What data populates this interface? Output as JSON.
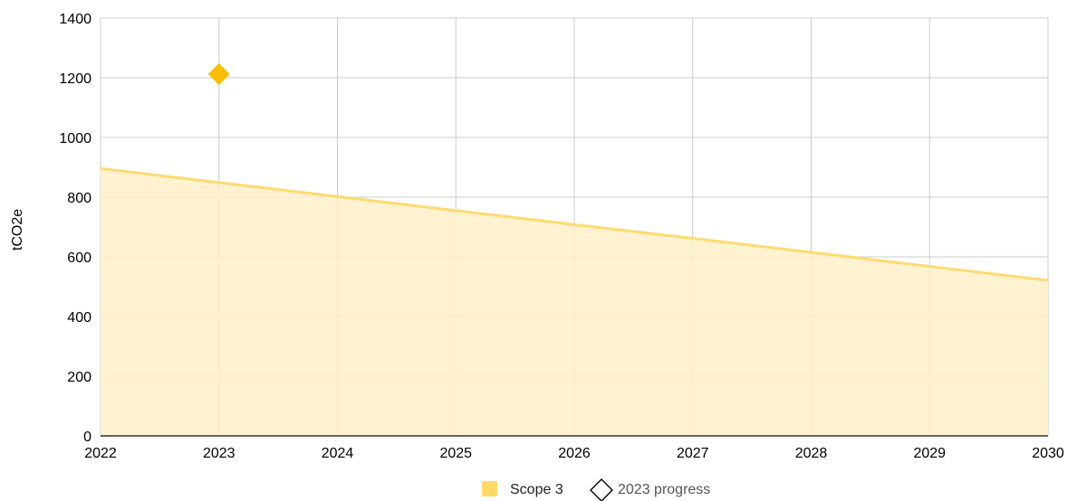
{
  "chart_data": {
    "type": "area",
    "x": [
      2022,
      2023,
      2024,
      2025,
      2026,
      2027,
      2028,
      2029,
      2030
    ],
    "xlim": [
      2022,
      2030
    ],
    "ylim": [
      0,
      1400
    ],
    "yticks": [
      0,
      200,
      400,
      600,
      800,
      1000,
      1200,
      1400
    ],
    "ylabel": "tCO2e",
    "xlabel": "",
    "grid": true,
    "legend_position": "bottom",
    "series": [
      {
        "name": "Scope 3",
        "type": "area",
        "values": [
          896,
          849,
          802,
          755,
          708,
          662,
          615,
          568,
          521
        ],
        "line_color": "#FFDB70",
        "fill_color": "#FEF0C9"
      },
      {
        "name": "2023 progress",
        "type": "scatter",
        "marker": "diamond",
        "points": [
          {
            "x": 2023,
            "y": 1212
          }
        ],
        "color": "#FBBC04"
      }
    ]
  },
  "colors": {
    "legend_swatch": "#FFDA6B",
    "grid": "#CCCCCC",
    "axis": "#333333",
    "progress_label": "#555555"
  }
}
